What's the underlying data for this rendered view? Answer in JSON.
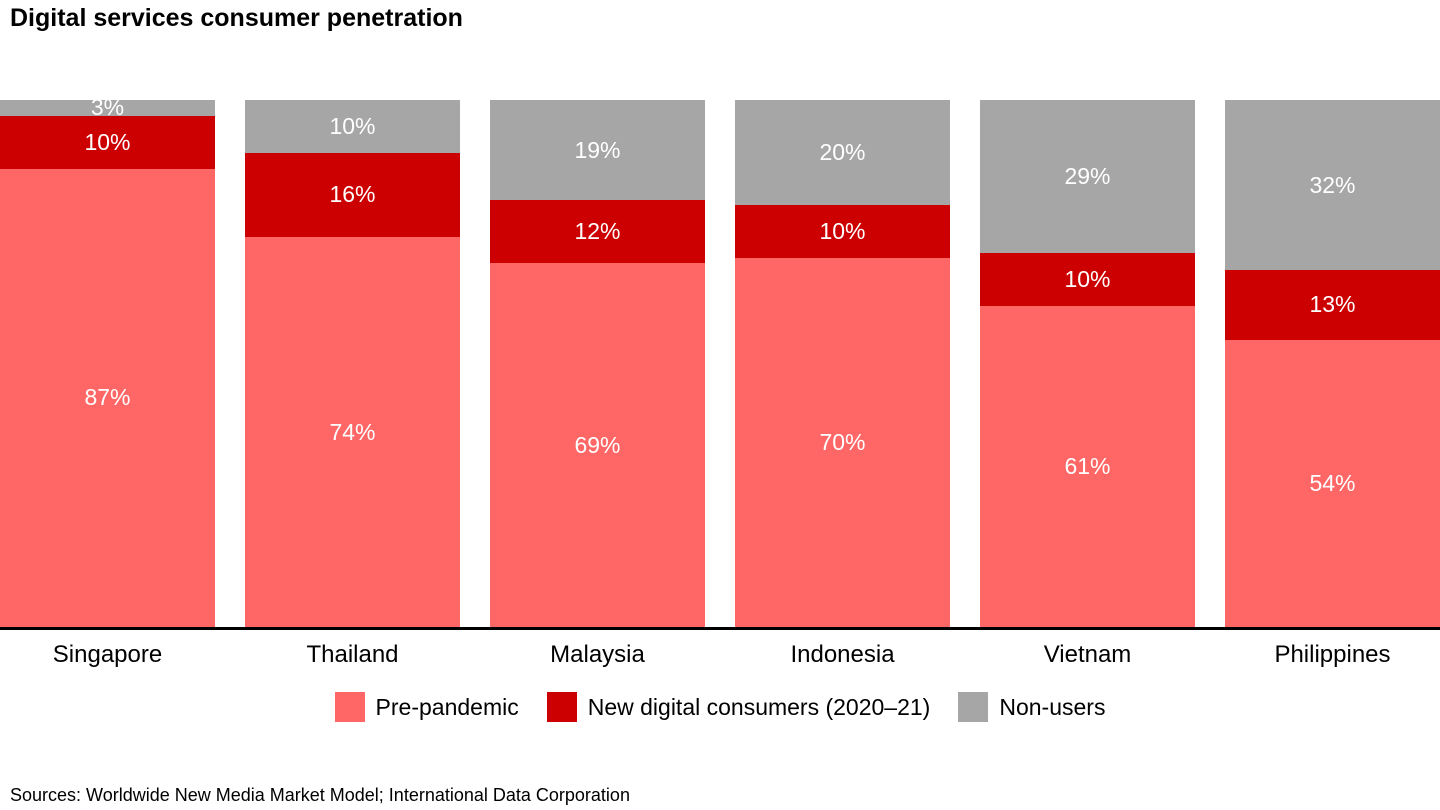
{
  "title": "Digital services consumer penetration",
  "sources": "Sources: Worldwide New Media Market Model; International Data Corporation",
  "colors": {
    "pre_pandemic": "#ff6666",
    "new_digital_consumers": "#cc0000",
    "non_users": "#a6a6a6",
    "axis_line": "#000000",
    "label_text": "#ffffff"
  },
  "chart_data": {
    "type": "bar",
    "stacked": true,
    "title": "Digital services consumer penetration",
    "xlabel": "",
    "ylabel": "",
    "ylim": [
      0,
      100
    ],
    "grid": false,
    "legend_position": "bottom-center",
    "categories": [
      "Singapore",
      "Thailand",
      "Malaysia",
      "Indonesia",
      "Vietnam",
      "Philippines"
    ],
    "series": [
      {
        "name": "Pre-pandemic",
        "color": "#ff6666",
        "values": [
          87,
          74,
          69,
          70,
          61,
          54
        ]
      },
      {
        "name": "New digital consumers (2020–21)",
        "color": "#cc0000",
        "values": [
          10,
          16,
          12,
          10,
          10,
          13
        ]
      },
      {
        "name": "Non-users",
        "color": "#a6a6a6",
        "values": [
          3,
          10,
          19,
          20,
          29,
          32
        ]
      }
    ]
  }
}
